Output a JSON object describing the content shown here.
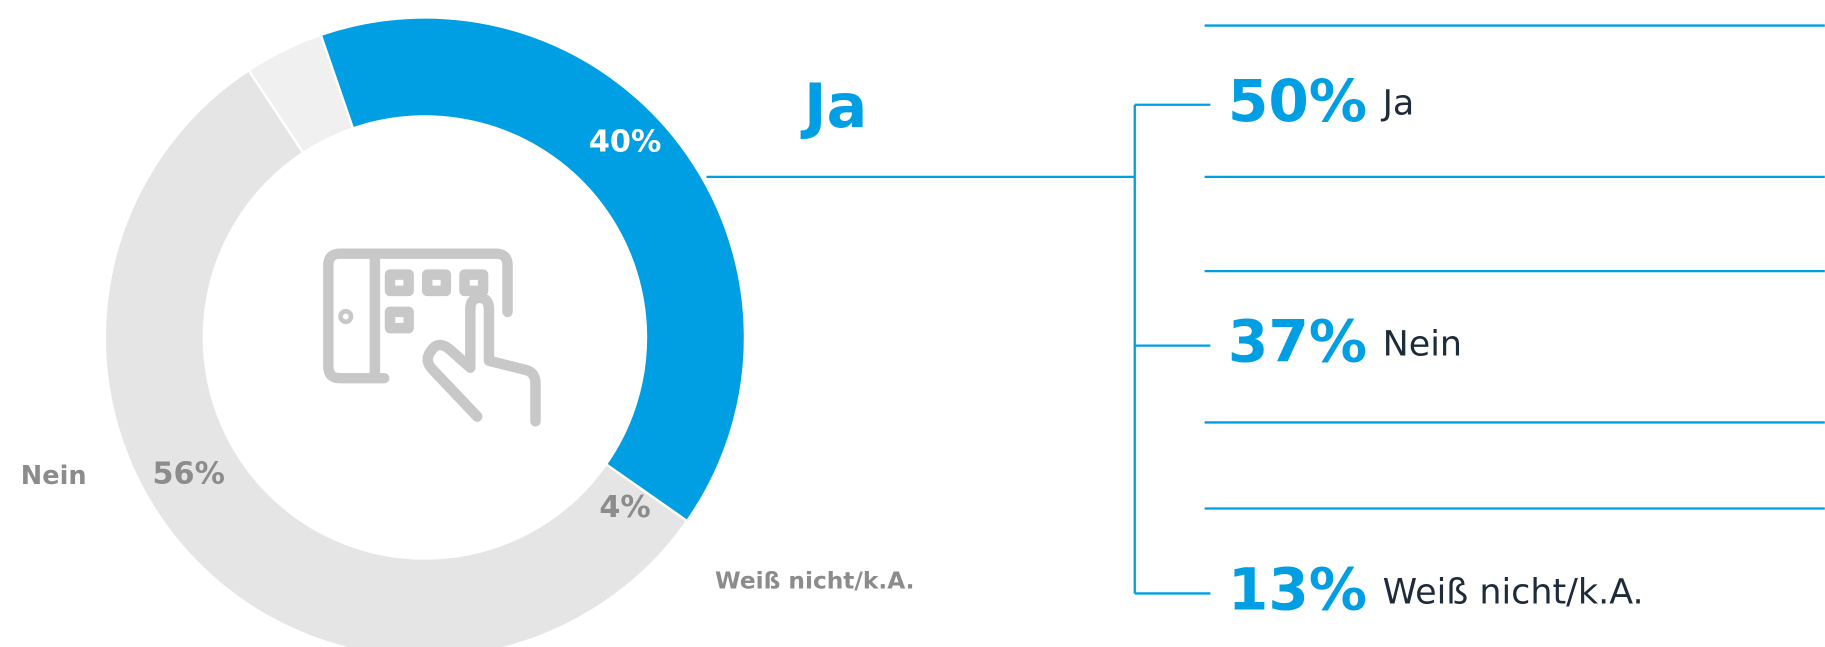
{
  "chart_data": [
    {
      "type": "pie",
      "categories": [
        "Ja",
        "Nein",
        "Weiß nicht/k.A."
      ],
      "values": [
        40,
        56,
        4
      ],
      "value_labels": [
        "40%",
        "56%",
        "4%"
      ],
      "colors": [
        "#009fe3",
        "#e5e5e5",
        "#f0f0f0"
      ]
    },
    {
      "type": "list",
      "categories": [
        "Ja",
        "Nein",
        "Weiß nicht/k.A."
      ],
      "values": [
        50,
        37,
        13
      ],
      "value_labels": [
        "50%",
        "37%",
        "13%"
      ],
      "color": "#009fe3"
    }
  ]
}
